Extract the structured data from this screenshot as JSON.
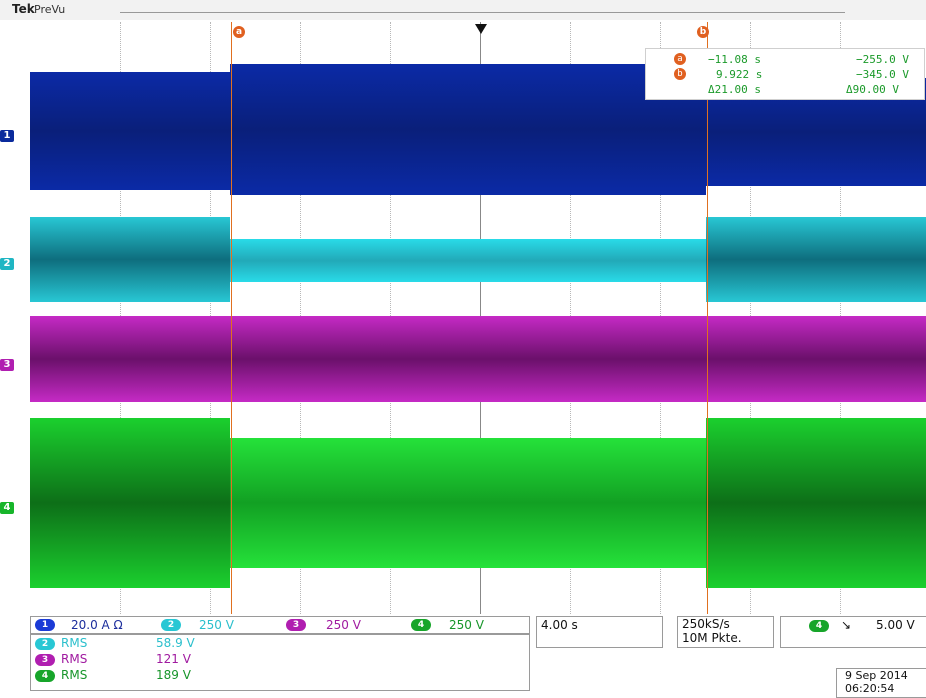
{
  "header": {
    "brand": "Tek",
    "mode": "PreVu"
  },
  "cursor_markers": {
    "a": "a",
    "b": "b"
  },
  "readout": {
    "a_time": "−11.08 s",
    "a_value": "−255.0 V",
    "b_time": "9.922 s",
    "b_value": "−345.0 V",
    "delta_time": "Δ21.00 s",
    "delta_value": "Δ90.00 V"
  },
  "channels": [
    {
      "id": "1",
      "color": "#0a2a9c"
    },
    {
      "id": "2",
      "color": "#1fb6c3"
    },
    {
      "id": "3",
      "color": "#b01eb0"
    },
    {
      "id": "4",
      "color": "#17b52a"
    }
  ],
  "bottom": {
    "ch1_scale": "20.0 A Ω",
    "ch2_scale": "250 V",
    "ch3_scale": "250 V",
    "ch4_scale": "250 V",
    "timebase": "4.00 s",
    "sample_rate": "250kS/s",
    "record_length": "10M Pkte.",
    "trigger_level": "5.00 V",
    "trigger_slope": "↘",
    "date": "9 Sep  2014",
    "time": "06:20:54",
    "measurements": [
      {
        "ch": "2",
        "label": "RMS",
        "value": "58.9 V"
      },
      {
        "ch": "3",
        "label": "RMS",
        "value": "121 V"
      },
      {
        "ch": "4",
        "label": "RMS",
        "value": "189 V"
      }
    ]
  }
}
